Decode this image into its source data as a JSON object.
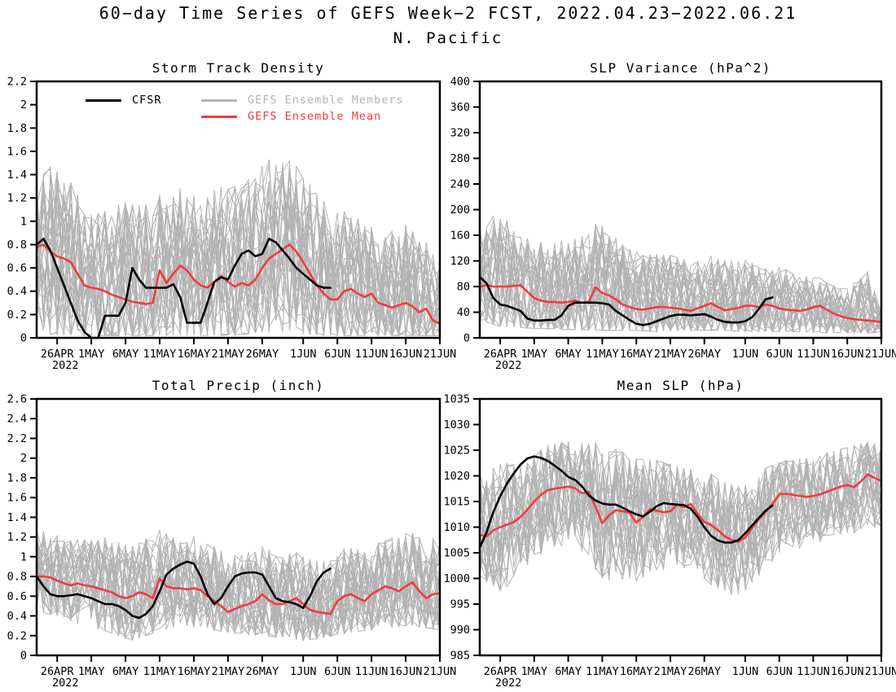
{
  "chart_data": {
    "type": "line",
    "title": "60−day Time Series of GEFS Week−2 FCST, 2022.04.23−2022.06.21",
    "subtitle": "N. Pacific",
    "colors": {
      "cfsr": "#000000",
      "members": "#b3b3b3",
      "mean": "#f23b3b",
      "axis": "#000000"
    },
    "legend": [
      {
        "name": "CFSR",
        "color": "#000000"
      },
      {
        "name": "GEFS Ensemble Members",
        "color": "#b3b3b3"
      },
      {
        "name": "GEFS Ensemble Mean",
        "color": "#f23b3b"
      }
    ],
    "x": {
      "days": 60,
      "start_date": "2022.04.23",
      "end_date": "2022.06.21",
      "ticks": [
        {
          "day": 3,
          "label": "26APR",
          "sub": "2022"
        },
        {
          "day": 8,
          "label": "1MAY"
        },
        {
          "day": 13,
          "label": "6MAY"
        },
        {
          "day": 18,
          "label": "11MAY"
        },
        {
          "day": 23,
          "label": "16MAY"
        },
        {
          "day": 28,
          "label": "21MAY"
        },
        {
          "day": 33,
          "label": "26MAY"
        },
        {
          "day": 39,
          "label": "1JUN"
        },
        {
          "day": 44,
          "label": "6JUN"
        },
        {
          "day": 49,
          "label": "11JUN"
        },
        {
          "day": 54,
          "label": "16JUN"
        },
        {
          "day": 59,
          "label": "21JUN"
        }
      ]
    },
    "panels": [
      {
        "title": "Storm Track Density",
        "ylim": [
          0,
          2.2
        ],
        "yticks": [
          "0",
          "0.2",
          "0.4",
          "0.6",
          "0.8",
          "1",
          "1.2",
          "1.4",
          "1.6",
          "1.8",
          "2",
          "2.2"
        ],
        "members": 30,
        "seed": 11,
        "cfsr": [
          0.8,
          0.85,
          0.75,
          0.6,
          0.45,
          0.3,
          0.15,
          0.05,
          0.0,
          0.0,
          0.19,
          0.19,
          0.19,
          0.3,
          0.6,
          0.5,
          0.43,
          0.43,
          0.43,
          0.43,
          0.46,
          0.35,
          0.13,
          0.13,
          0.13,
          0.3,
          0.48,
          0.52,
          0.5,
          0.62,
          0.72,
          0.75,
          0.7,
          0.72,
          0.85,
          0.82,
          0.75,
          0.68,
          0.6,
          0.55,
          0.5,
          0.45,
          0.43,
          0.43
        ],
        "mean": [
          0.78,
          0.8,
          0.74,
          0.7,
          0.68,
          0.65,
          0.55,
          0.45,
          0.43,
          0.42,
          0.4,
          0.37,
          0.35,
          0.33,
          0.31,
          0.3,
          0.29,
          0.3,
          0.58,
          0.47,
          0.55,
          0.62,
          0.58,
          0.5,
          0.45,
          0.43,
          0.48,
          0.53,
          0.48,
          0.44,
          0.47,
          0.45,
          0.5,
          0.6,
          0.68,
          0.72,
          0.76,
          0.8,
          0.74,
          0.65,
          0.55,
          0.45,
          0.38,
          0.33,
          0.33,
          0.4,
          0.42,
          0.38,
          0.35,
          0.38,
          0.3,
          0.28,
          0.26,
          0.28,
          0.3,
          0.27,
          0.22,
          0.25,
          0.15,
          0.12
        ],
        "env": {
          "days": [
            0,
            3,
            6,
            10,
            14,
            18,
            22,
            26,
            30,
            33,
            36,
            39,
            42,
            45,
            48,
            51,
            54,
            57,
            59
          ],
          "max": [
            1.45,
            1.55,
            1.3,
            1.22,
            1.45,
            1.3,
            1.32,
            1.4,
            1.55,
            1.65,
            1.55,
            1.48,
            1.35,
            1.22,
            1.1,
            1.05,
            1.12,
            0.95,
            0.85
          ],
          "min": [
            0.05,
            0.02,
            0.02,
            0.02,
            0.02,
            0.02,
            0.02,
            0.02,
            0.03,
            0.05,
            0.04,
            0.03,
            0.02,
            0.02,
            0.02,
            0.02,
            0.02,
            0.02,
            0.02
          ]
        }
      },
      {
        "title": "SLP Variance (hPa^2)",
        "ylim": [
          0,
          400
        ],
        "yticks": [
          "0",
          "40",
          "80",
          "120",
          "160",
          "200",
          "240",
          "280",
          "320",
          "360",
          "400"
        ],
        "members": 30,
        "seed": 22,
        "cfsr": [
          95,
          85,
          62,
          52,
          50,
          46,
          42,
          30,
          27,
          27,
          28,
          28,
          35,
          50,
          55,
          55,
          55,
          55,
          54,
          52,
          42,
          35,
          28,
          22,
          20,
          22,
          26,
          30,
          34,
          36,
          36,
          35,
          36,
          37,
          33,
          28,
          25,
          24,
          24,
          26,
          32,
          45,
          60,
          63
        ],
        "mean": [
          80,
          82,
          80,
          80,
          80,
          81,
          82,
          72,
          62,
          58,
          56,
          56,
          55,
          56,
          58,
          55,
          56,
          79,
          70,
          66,
          60,
          52,
          48,
          45,
          44,
          46,
          48,
          48,
          47,
          46,
          44,
          42,
          46,
          50,
          54,
          48,
          43,
          45,
          47,
          50,
          50,
          48,
          52,
          50,
          46,
          44,
          43,
          42,
          44,
          48,
          50,
          44,
          38,
          34,
          31,
          29,
          28,
          27,
          26,
          25
        ],
        "env": {
          "days": [
            0,
            3,
            6,
            10,
            14,
            18,
            22,
            26,
            30,
            33,
            36,
            39,
            42,
            45,
            48,
            51,
            54,
            57,
            59
          ],
          "max": [
            190,
            220,
            165,
            170,
            178,
            195,
            160,
            150,
            145,
            140,
            140,
            135,
            128,
            118,
            105,
            92,
            88,
            128,
            55
          ],
          "min": [
            28,
            18,
            16,
            14,
            13,
            12,
            12,
            10,
            12,
            12,
            12,
            10,
            10,
            10,
            9,
            8,
            8,
            8,
            8
          ]
        }
      },
      {
        "title": "Total Precip (inch)",
        "ylim": [
          0,
          2.6
        ],
        "yticks": [
          "0",
          "0.2",
          "0.4",
          "0.6",
          "0.8",
          "1",
          "1.2",
          "1.4",
          "1.6",
          "1.8",
          "2",
          "2.2",
          "2.4",
          "2.6"
        ],
        "members": 30,
        "seed": 33,
        "cfsr": [
          0.8,
          0.7,
          0.62,
          0.6,
          0.6,
          0.61,
          0.62,
          0.6,
          0.58,
          0.55,
          0.52,
          0.52,
          0.5,
          0.46,
          0.4,
          0.38,
          0.42,
          0.5,
          0.65,
          0.82,
          0.88,
          0.92,
          0.95,
          0.93,
          0.8,
          0.62,
          0.52,
          0.58,
          0.7,
          0.8,
          0.83,
          0.84,
          0.84,
          0.82,
          0.7,
          0.58,
          0.55,
          0.54,
          0.52,
          0.48,
          0.6,
          0.75,
          0.84,
          0.88
        ],
        "mean": [
          0.8,
          0.8,
          0.79,
          0.76,
          0.73,
          0.71,
          0.73,
          0.71,
          0.7,
          0.68,
          0.66,
          0.64,
          0.6,
          0.58,
          0.6,
          0.64,
          0.62,
          0.58,
          0.78,
          0.7,
          0.68,
          0.68,
          0.67,
          0.68,
          0.66,
          0.6,
          0.55,
          0.5,
          0.44,
          0.47,
          0.5,
          0.52,
          0.55,
          0.62,
          0.56,
          0.52,
          0.52,
          0.55,
          0.58,
          0.52,
          0.46,
          0.44,
          0.43,
          0.42,
          0.55,
          0.6,
          0.62,
          0.58,
          0.55,
          0.62,
          0.66,
          0.7,
          0.68,
          0.65,
          0.7,
          0.74,
          0.65,
          0.58,
          0.62,
          0.63
        ],
        "env": {
          "days": [
            0,
            3,
            6,
            10,
            14,
            18,
            22,
            26,
            30,
            33,
            36,
            39,
            42,
            45,
            48,
            51,
            54,
            57,
            59
          ],
          "max": [
            1.32,
            1.25,
            1.2,
            1.25,
            1.18,
            1.28,
            1.3,
            1.22,
            1.12,
            1.15,
            1.1,
            1.05,
            1.08,
            1.12,
            1.15,
            1.2,
            1.3,
            1.28,
            1.25
          ],
          "min": [
            0.45,
            0.4,
            0.32,
            0.25,
            0.15,
            0.25,
            0.3,
            0.25,
            0.22,
            0.2,
            0.18,
            0.15,
            0.18,
            0.22,
            0.25,
            0.28,
            0.3,
            0.28,
            0.26
          ]
        }
      },
      {
        "title": "Mean SLP (hPa)",
        "ylim": [
          985,
          1035
        ],
        "yticks": [
          "985",
          "990",
          "995",
          "1000",
          "1005",
          "1010",
          "1015",
          "1020",
          "1025",
          "1030",
          "1035"
        ],
        "members": 30,
        "seed": 44,
        "cfsr": [
          1006,
          1009,
          1013,
          1016,
          1018.5,
          1020.5,
          1022.2,
          1023.4,
          1023.8,
          1023.5,
          1022.9,
          1022,
          1021,
          1019.8,
          1019.2,
          1018,
          1016.2,
          1015.2,
          1014.6,
          1014.4,
          1014.4,
          1013.8,
          1013.1,
          1012.5,
          1012.1,
          1013,
          1014.1,
          1014.7,
          1014.5,
          1014.4,
          1014.3,
          1013.6,
          1012,
          1010,
          1008.3,
          1007.4,
          1007,
          1007,
          1007.5,
          1008.8,
          1010.3,
          1011.8,
          1013.2,
          1014.2
        ],
        "mean": [
          1008.5,
          1008.2,
          1009.4,
          1010,
          1010.5,
          1011,
          1012,
          1013.4,
          1015,
          1016.3,
          1017.2,
          1017.5,
          1017.7,
          1017.9,
          1017.6,
          1016.6,
          1016.9,
          1014,
          1010.8,
          1012.3,
          1013.3,
          1013.1,
          1012.8,
          1010.9,
          1012,
          1013.5,
          1013.2,
          1012.9,
          1013.1,
          1014.4,
          1013.9,
          1014.5,
          1012.6,
          1011,
          1010.4,
          1009.4,
          1008.2,
          1007.5,
          1007.1,
          1008,
          1009.8,
          1011.5,
          1013,
          1014.5,
          1016.4,
          1016.5,
          1016.3,
          1016.1,
          1015.9,
          1016.1,
          1016.4,
          1016.9,
          1017.4,
          1017.9,
          1018.2,
          1017.8,
          1018.9,
          1020.3,
          1019.6,
          1019
        ],
        "env": {
          "days": [
            0,
            3,
            6,
            10,
            14,
            18,
            22,
            26,
            30,
            33,
            36,
            39,
            42,
            45,
            48,
            51,
            54,
            57,
            59
          ],
          "max": [
            1022,
            1023,
            1022,
            1026,
            1027,
            1026.5,
            1024,
            1023,
            1021.5,
            1021,
            1019,
            1018.5,
            1021.5,
            1023,
            1023.5,
            1024.5,
            1025.5,
            1026.5,
            1026
          ],
          "min": [
            1000,
            997.5,
            1000,
            1004.5,
            1006,
            1000,
            998.5,
            1001,
            1000,
            998.5,
            997,
            996.5,
            1000,
            1003,
            1005.5,
            1007,
            1008,
            1008.5,
            1008
          ]
        }
      }
    ]
  }
}
